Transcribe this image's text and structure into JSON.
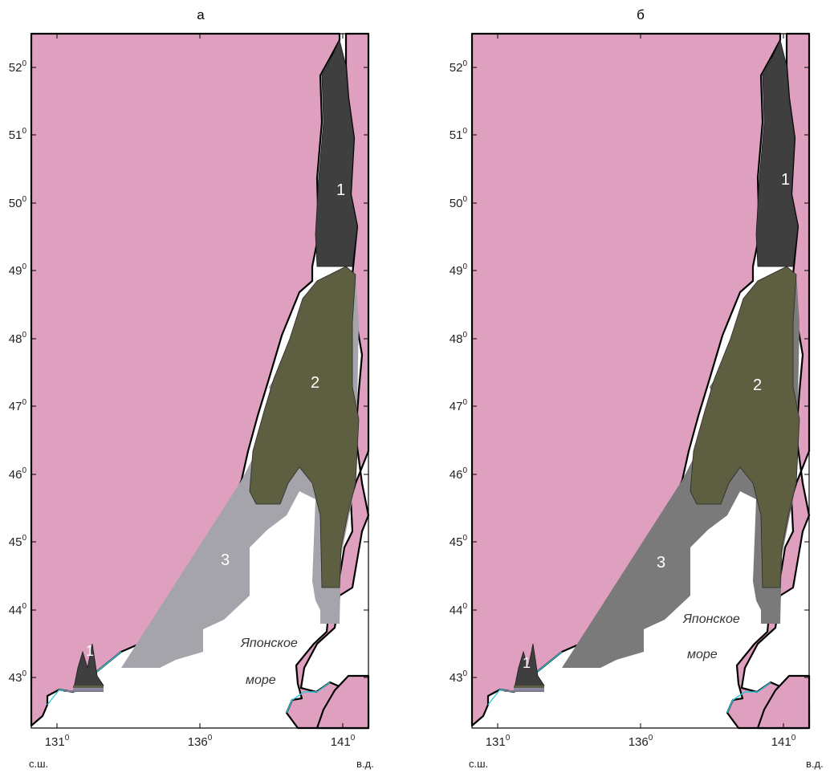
{
  "colors": {
    "land": "#dfa0c0",
    "sea": "#ffffff",
    "zone1": "#3f3f3f",
    "zone2": "#5e5e40",
    "zone3_a": "#a4a4aa",
    "zone3_b": "#7a7a7a",
    "coast": "#2ec7d6"
  },
  "panels": [
    {
      "title": "а",
      "zone3_fill": "#a4a4aa"
    },
    {
      "title": "б",
      "zone3_fill": "#7a7a7a"
    }
  ],
  "axes": {
    "x_ticks": [
      {
        "value": "131",
        "sup": "0"
      },
      {
        "value": "136",
        "sup": "0"
      },
      {
        "value": "141",
        "sup": "0"
      }
    ],
    "y_ticks": [
      {
        "value": "52",
        "sup": "0"
      },
      {
        "value": "51",
        "sup": "0"
      },
      {
        "value": "50",
        "sup": "0"
      },
      {
        "value": "49",
        "sup": "0"
      },
      {
        "value": "48",
        "sup": "0"
      },
      {
        "value": "47",
        "sup": "0"
      },
      {
        "value": "46",
        "sup": "0"
      },
      {
        "value": "45",
        "sup": "0"
      },
      {
        "value": "44",
        "sup": "0"
      },
      {
        "value": "43",
        "sup": "0"
      }
    ],
    "lat_label": "с.ш.",
    "lon_label": "в.д."
  },
  "zones": {
    "zone1_label": "1",
    "zone2_label": "2",
    "zone3_label": "3"
  },
  "sea_name": {
    "line1": "Японское",
    "line2": "море"
  }
}
